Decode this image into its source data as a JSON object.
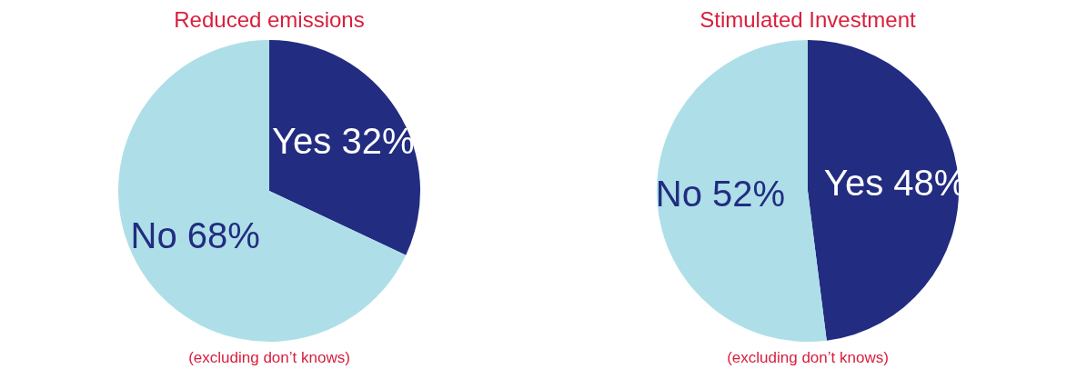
{
  "chart_data": [
    {
      "type": "pie",
      "title": "Reduced emissions",
      "categories": [
        "Yes",
        "No"
      ],
      "values": [
        32,
        68
      ],
      "colors": [
        "#222c80",
        "#aedfe8"
      ],
      "value_labels": [
        "32%",
        "68%"
      ],
      "legend": false,
      "annotations": [
        "(excluding don’t knows)"
      ]
    },
    {
      "type": "pie",
      "title": "Stimulated Investment",
      "categories": [
        "Yes",
        "No"
      ],
      "values": [
        48,
        52
      ],
      "colors": [
        "#222c80",
        "#aedfe8"
      ],
      "value_labels": [
        "48%",
        "52%"
      ],
      "legend": false,
      "annotations": [
        "(excluding don’t knows)"
      ]
    }
  ]
}
